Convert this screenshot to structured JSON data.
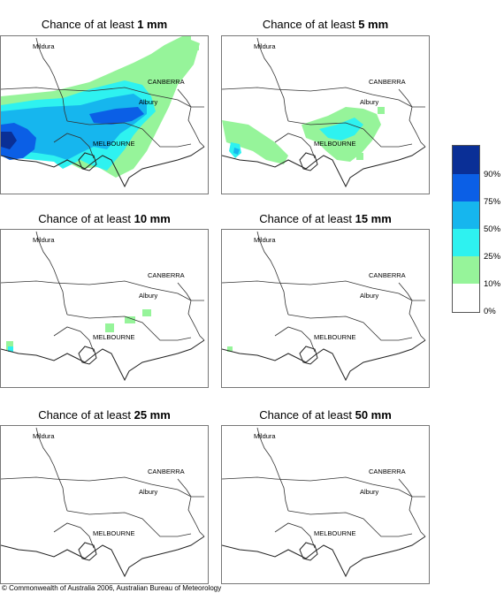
{
  "map_labels": {
    "mildura": "Mildura",
    "canberra": "CANBERRA",
    "albury": "Albury",
    "melbourne": "MELBOURNE"
  },
  "panels": [
    {
      "title_prefix": "Chance of at least ",
      "title_value": "1 mm"
    },
    {
      "title_prefix": "Chance of at least ",
      "title_value": "5 mm"
    },
    {
      "title_prefix": "Chance of at least ",
      "title_value": "10 mm"
    },
    {
      "title_prefix": "Chance of at least ",
      "title_value": "15 mm"
    },
    {
      "title_prefix": "Chance of at least ",
      "title_value": "25 mm"
    },
    {
      "title_prefix": "Chance of at least ",
      "title_value": "50 mm"
    }
  ],
  "legend": {
    "classes": [
      {
        "color": "#0a2f96",
        "tick": "90%"
      },
      {
        "color": "#0b5fe6",
        "tick": "75%"
      },
      {
        "color": "#16b6ee",
        "tick": "50%"
      },
      {
        "color": "#2ef2f0",
        "tick": "25%"
      },
      {
        "color": "#96f49a",
        "tick": "10%"
      },
      {
        "color": "#ffffff",
        "tick": "0%"
      }
    ]
  },
  "colors": {
    "gt10": "#96f49a",
    "gt25": "#2ef2f0",
    "gt50": "#16b6ee",
    "gt75": "#0b5fe6",
    "gt90": "#0a2f96"
  },
  "copyright": "© Commonwealth of Australia 2006, Australian Bureau of Meteorology"
}
